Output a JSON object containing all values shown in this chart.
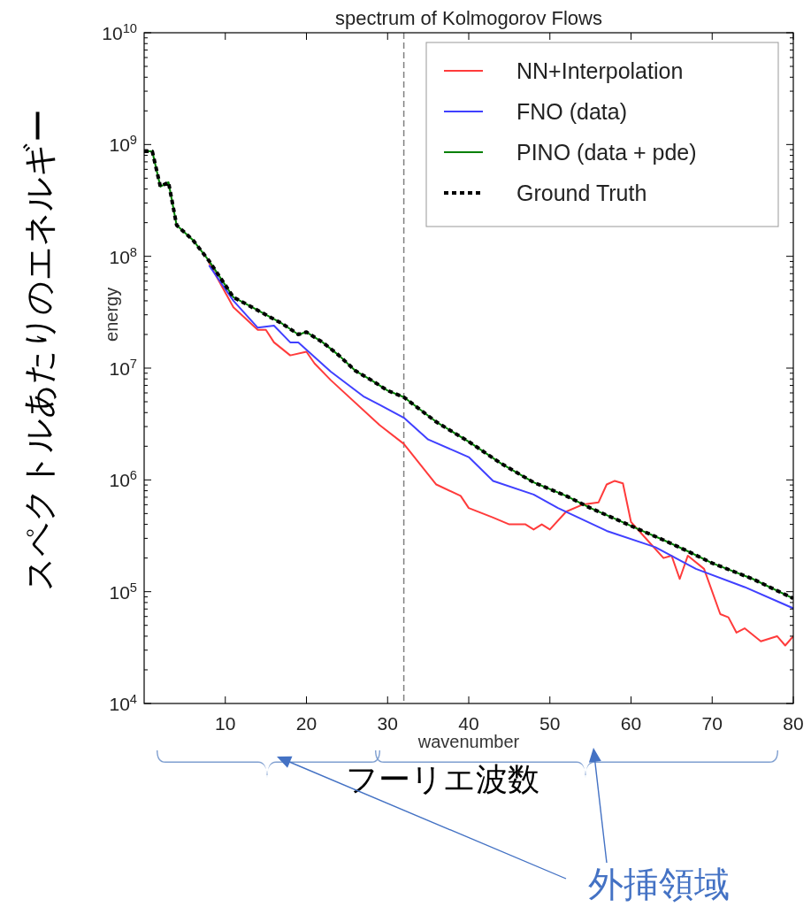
{
  "chart_data": {
    "type": "line",
    "title": "spectrum of Kolmogorov Flows",
    "xlabel": "wavenumber",
    "ylabel": "energy",
    "annotations": [
      "スペクトルあたりのエネルギー",
      "フーリエ波数",
      "外挿領域"
    ],
    "log": "y",
    "xlim": [
      0,
      80
    ],
    "xticks": [
      10,
      20,
      30,
      40,
      50,
      60,
      70,
      80
    ],
    "ylim": [
      10000,
      10000000000
    ],
    "yticks": [
      {
        "value": 10000,
        "label": "10$^{4}$"
      },
      {
        "value": 100000,
        "label": "10$^{5}$"
      },
      {
        "value": 1000000,
        "label": "10$^{6}$"
      },
      {
        "value": 10000000,
        "label": "10$^{7}$"
      },
      {
        "value": 100000000,
        "label": "10$^{8}$"
      },
      {
        "value": 1000000000,
        "label": "10$^{9}$"
      },
      {
        "value": 10000000000,
        "label": "10$^{10}$"
      }
    ],
    "grid": false,
    "legend": "top right",
    "ref_lines": [
      {
        "axis": "x",
        "value": 32,
        "color": "#808080",
        "line_style": "dashed"
      }
    ],
    "series": [
      {
        "name": "NN+Interpolation",
        "color": "#ff3b3b",
        "x": [
          8,
          11,
          14,
          15,
          16,
          18,
          20,
          21,
          23,
          29,
          32,
          36,
          39,
          40,
          43,
          45,
          47,
          48,
          49,
          50,
          52,
          54,
          56,
          57,
          58,
          59,
          60,
          62,
          64,
          65,
          66,
          67,
          69,
          71,
          72,
          73,
          74,
          76,
          78,
          79,
          80
        ],
        "values": [
          87000000,
          35000000,
          22000000,
          22000000,
          17000000,
          13000000,
          14000000,
          11000000,
          7800000,
          3100000,
          2100000,
          910000,
          720000,
          560000,
          460000,
          400000,
          400000,
          360000,
          400000,
          360000,
          520000,
          600000,
          630000,
          910000,
          980000,
          930000,
          420000,
          290000,
          200000,
          210000,
          130000,
          210000,
          160000,
          63000,
          59000,
          43000,
          47000,
          36000,
          40000,
          33000,
          40000
        ]
      },
      {
        "name": "FNO (data)",
        "color": "#4040ff",
        "x": [
          8,
          11,
          14,
          16,
          18,
          19,
          23,
          27,
          29,
          32,
          35,
          40,
          43,
          48,
          51,
          57,
          63,
          68,
          74,
          80
        ],
        "values": [
          83000000,
          40000000,
          23000000,
          24000000,
          17000000,
          17000000,
          9300000,
          5600000,
          4700000,
          3600000,
          2300000,
          1600000,
          980000,
          740000,
          560000,
          350000,
          250000,
          160000,
          110000,
          71000
        ]
      },
      {
        "name": "PINO (data + pde)",
        "color": "#008000",
        "x": [
          0,
          1,
          2,
          3,
          4,
          6,
          8,
          11,
          13,
          15,
          17,
          19,
          20,
          22,
          24,
          26,
          28,
          30,
          32,
          36,
          40,
          44,
          48,
          52,
          55,
          58,
          61,
          64,
          67,
          70,
          75,
          80
        ],
        "values": [
          870000000,
          870000000,
          420000000,
          460000000,
          190000000,
          140000000,
          91000000,
          43000000,
          36000000,
          30000000,
          25000000,
          20000000,
          21000000,
          17000000,
          13000000,
          9500000,
          7800000,
          6300000,
          5500000,
          3300000,
          2200000,
          1400000,
          950000,
          720000,
          560000,
          450000,
          360000,
          290000,
          230000,
          180000,
          130000,
          87000
        ]
      },
      {
        "name": "Ground Truth",
        "color": "#000000",
        "line_style": "dashed",
        "x": [
          0,
          1,
          2,
          3,
          4,
          6,
          8,
          11,
          13,
          15,
          17,
          19,
          20,
          22,
          24,
          26,
          28,
          30,
          32,
          36,
          40,
          44,
          48,
          52,
          55,
          58,
          61,
          64,
          67,
          70,
          75,
          80
        ],
        "values": [
          870000000,
          870000000,
          420000000,
          460000000,
          190000000,
          140000000,
          91000000,
          43000000,
          36000000,
          30000000,
          25000000,
          20000000,
          21000000,
          17000000,
          13000000,
          9500000,
          7800000,
          6300000,
          5500000,
          3300000,
          2200000,
          1400000,
          950000,
          720000,
          560000,
          450000,
          360000,
          290000,
          230000,
          180000,
          130000,
          87000
        ]
      }
    ]
  }
}
